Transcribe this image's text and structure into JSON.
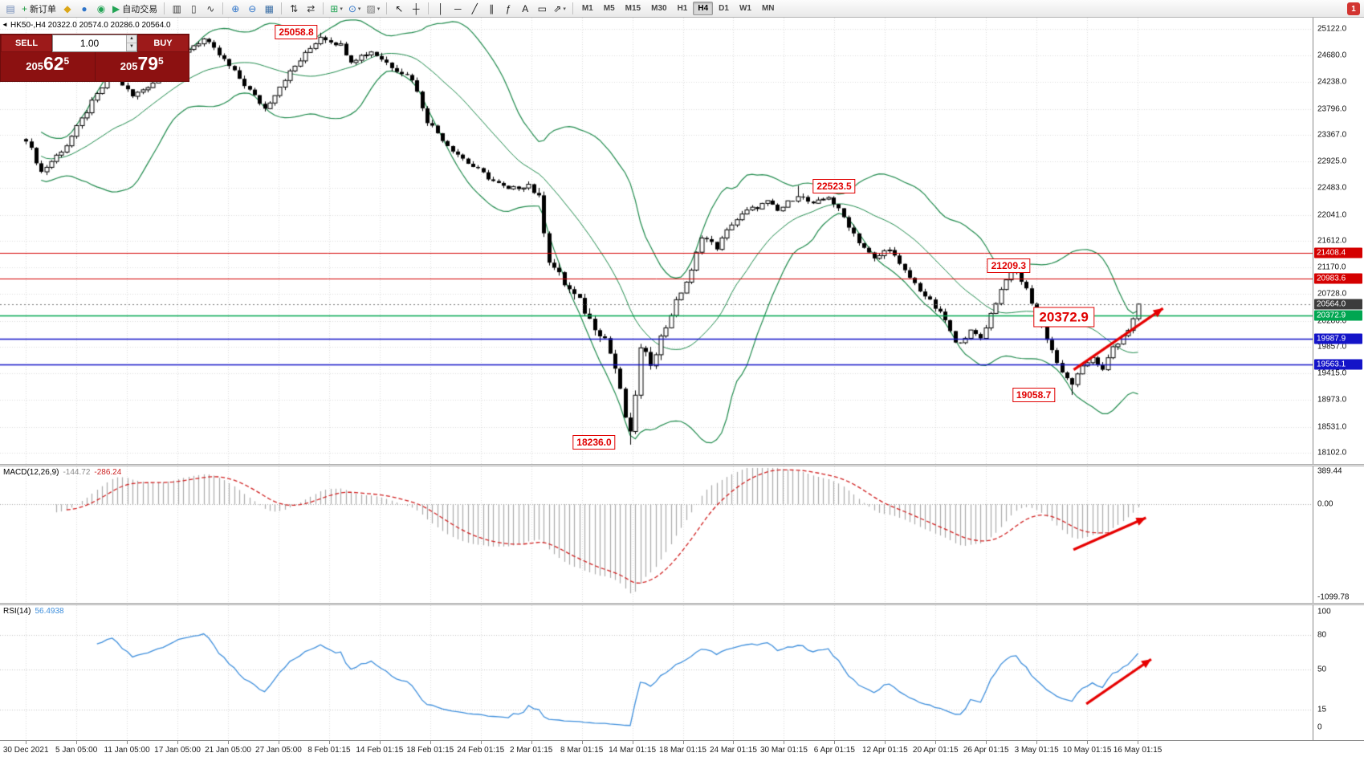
{
  "ui": {
    "symbol_info": "HK50-,H4  20322.0 20574.0 20286.0 20564.0",
    "collapse_glyph": "◄",
    "badge": "1",
    "trade_panel": {
      "sell_label": "SELL",
      "buy_label": "BUY",
      "volume": "1.00",
      "spin_up": "▲",
      "spin_down": "▼",
      "sell_price": "20562.5",
      "buy_price": "20579.5",
      "sell_small": "205",
      "sell_big": "62",
      "sell_sup": "5",
      "buy_small": "205",
      "buy_big": "79",
      "buy_sup": "5"
    },
    "toolbar": {
      "items": [
        {
          "n": "window-icon",
          "g": "▤",
          "gc": "#6b86b5"
        },
        {
          "n": "new-order-button",
          "g": "+",
          "gc": "#1d9a3f",
          "label": "新订单"
        },
        {
          "n": "mql5-icon",
          "g": "◆",
          "gc": "#dba617"
        },
        {
          "n": "market-icon",
          "g": "●",
          "gc": "#2e74c9"
        },
        {
          "n": "signals-icon",
          "g": "◉",
          "gc": "#23a455"
        },
        {
          "n": "autotrading-button",
          "g": "▶",
          "gc": "#23a455",
          "label": "自动交易"
        },
        {
          "sep": true
        },
        {
          "n": "bars-chart-icon",
          "g": "▥",
          "gc": "#3a3a3a"
        },
        {
          "n": "candles-chart-icon",
          "g": "▯",
          "gc": "#3a3a3a"
        },
        {
          "n": "line-chart-icon",
          "g": "∿",
          "gc": "#3a3a3a"
        },
        {
          "sep": true
        },
        {
          "n": "zoom-in-icon",
          "g": "⊕",
          "gc": "#2e74c9"
        },
        {
          "n": "zoom-out-icon",
          "g": "⊖",
          "gc": "#2e74c9"
        },
        {
          "n": "tile-windows-icon",
          "g": "▦",
          "gc": "#3a6ea5"
        },
        {
          "sep": true
        },
        {
          "n": "arrange-vertical-icon",
          "g": "⇅",
          "gc": "#3a3a3a"
        },
        {
          "n": "arrange-horizontal-icon",
          "g": "⇄",
          "gc": "#3a3a3a"
        },
        {
          "sep": true
        },
        {
          "n": "new-chart-icon",
          "g": "⊞",
          "gc": "#23a455",
          "dd": true
        },
        {
          "n": "profiles-icon",
          "g": "⊙",
          "gc": "#2e74c9",
          "dd": true
        },
        {
          "n": "templates-icon",
          "g": "▨",
          "gc": "#777777",
          "dd": true
        },
        {
          "sep": true
        },
        {
          "n": "cursor-icon",
          "g": "↖",
          "gc": "#1a1a1a"
        },
        {
          "n": "crosshair-icon",
          "g": "┼",
          "gc": "#1a1a1a"
        },
        {
          "sep": true
        },
        {
          "n": "vertical-line-icon",
          "g": "│",
          "gc": "#1a1a1a"
        },
        {
          "n": "horizontal-line-icon",
          "g": "─",
          "gc": "#1a1a1a"
        },
        {
          "n": "trendline-icon",
          "g": "╱",
          "gc": "#1a1a1a"
        },
        {
          "n": "equidistant-channel-icon",
          "g": "∥",
          "gc": "#1a1a1a"
        },
        {
          "n": "fibonacci-icon",
          "g": "ƒ",
          "gc": "#1a1a1a"
        },
        {
          "n": "text-icon",
          "g": "A",
          "gc": "#1a1a1a"
        },
        {
          "n": "text-label-icon",
          "g": "▭",
          "gc": "#1a1a1a"
        },
        {
          "n": "arrows-icon",
          "g": "⇗",
          "gc": "#1a1a1a",
          "dd": true
        },
        {
          "sep": true
        },
        {
          "tf": "M1"
        },
        {
          "tf": "M5"
        },
        {
          "tf": "M15"
        },
        {
          "tf": "M30"
        },
        {
          "tf": "H1"
        },
        {
          "tf": "H4"
        },
        {
          "tf": "D1"
        },
        {
          "tf": "W1"
        },
        {
          "tf": "MN"
        }
      ],
      "active_timeframe": "H4"
    }
  },
  "chart_data": {
    "type": "candlestick",
    "symbol": "HK50-",
    "timeframe": "H4",
    "ohlc_current": {
      "open": 20322.0,
      "high": 20574.0,
      "low": 20286.0,
      "close": 20564.0
    },
    "main": {
      "ylim": [
        18102,
        25122
      ],
      "y_ticks": [
        25122.0,
        24680.0,
        24238.0,
        23796.0,
        23367.0,
        22925.0,
        22483.0,
        22041.0,
        21612.0,
        21170.0,
        20728.0,
        20286.0,
        19857.0,
        19415.0,
        18973.0,
        18531.0,
        18102.0
      ],
      "num_candles": 220,
      "close_keyframes": [
        [
          0,
          23300
        ],
        [
          3,
          22750
        ],
        [
          8,
          23200
        ],
        [
          13,
          23900
        ],
        [
          17,
          24400
        ],
        [
          21,
          24000
        ],
        [
          26,
          24300
        ],
        [
          32,
          24800
        ],
        [
          35,
          24950
        ],
        [
          39,
          24600
        ],
        [
          44,
          24100
        ],
        [
          47,
          23800
        ],
        [
          51,
          24300
        ],
        [
          56,
          24800
        ],
        [
          58,
          25000
        ],
        [
          62,
          24850
        ],
        [
          64,
          24600
        ],
        [
          68,
          24750
        ],
        [
          72,
          24500
        ],
        [
          76,
          24300
        ],
        [
          79,
          23600
        ],
        [
          83,
          23200
        ],
        [
          87,
          22900
        ],
        [
          92,
          22600
        ],
        [
          95,
          22450
        ],
        [
          99,
          22550
        ],
        [
          101,
          22300
        ],
        [
          103,
          21300
        ],
        [
          106,
          20900
        ],
        [
          109,
          20600
        ],
        [
          111,
          20300
        ],
        [
          114,
          20000
        ],
        [
          116,
          19500
        ],
        [
          118,
          18700
        ],
        [
          119,
          18380
        ],
        [
          121,
          19800
        ],
        [
          123,
          19600
        ],
        [
          125,
          20000
        ],
        [
          128,
          20600
        ],
        [
          131,
          21100
        ],
        [
          133,
          21700
        ],
        [
          136,
          21500
        ],
        [
          139,
          21900
        ],
        [
          142,
          22100
        ],
        [
          146,
          22250
        ],
        [
          148,
          22100
        ],
        [
          152,
          22380
        ],
        [
          155,
          22200
        ],
        [
          158,
          22350
        ],
        [
          161,
          22000
        ],
        [
          164,
          21600
        ],
        [
          167,
          21300
        ],
        [
          170,
          21500
        ],
        [
          172,
          21200
        ],
        [
          175,
          20900
        ],
        [
          178,
          20600
        ],
        [
          181,
          20300
        ],
        [
          183,
          19900
        ],
        [
          186,
          20100
        ],
        [
          188,
          20000
        ],
        [
          190,
          20400
        ],
        [
          193,
          21000
        ],
        [
          195,
          21100
        ],
        [
          197,
          20800
        ],
        [
          200,
          20200
        ],
        [
          202,
          19800
        ],
        [
          204,
          19400
        ],
        [
          206,
          19250
        ],
        [
          208,
          19500
        ],
        [
          210,
          19700
        ],
        [
          212,
          19450
        ],
        [
          214,
          19850
        ],
        [
          216,
          20000
        ],
        [
          218,
          20322
        ],
        [
          219,
          20564
        ]
      ],
      "forced_points": {
        "jan_peak_high": {
          "index": 58,
          "price": 25058.8
        },
        "march_low": {
          "index": 119,
          "price": 18236.0
        },
        "rebound_high": {
          "index": 152,
          "price": 22523.5
        },
        "april_high": {
          "index": 195,
          "price": 21209.3
        },
        "may_low": {
          "index": 206,
          "price": 19058.7
        }
      },
      "bollinger": {
        "period": 20,
        "deviation": 2,
        "color": "#1f8a4c"
      },
      "levels": [
        {
          "price": 21408.4,
          "color": "#d40000",
          "width": 1,
          "tag_bg": "#d40000"
        },
        {
          "price": 20983.6,
          "color": "#d40000",
          "width": 1,
          "tag_bg": "#d40000"
        },
        {
          "price": 20564.0,
          "color": "#777777",
          "width": 1,
          "dash": true,
          "tag_bg": "#3c3c3c"
        },
        {
          "price": 20372.9,
          "color": "#00a651",
          "width": 1.3,
          "tag_bg": "#00a651"
        },
        {
          "price": 19987.9,
          "color": "#1414c8",
          "width": 1.3,
          "tag_bg": "#1414c8"
        },
        {
          "price": 19563.1,
          "color": "#1414c8",
          "width": 1.3,
          "tag_bg": "#1414c8"
        }
      ],
      "annotations": [
        {
          "text": "25058.8",
          "xf": 0.2257,
          "price": 25065,
          "size": "md"
        },
        {
          "text": "22523.5",
          "xf": 0.6355,
          "price": 22515,
          "size": "md"
        },
        {
          "text": "21209.3",
          "xf": 0.7684,
          "price": 21196,
          "size": "md"
        },
        {
          "text": "20372.9",
          "xf": 0.8105,
          "price": 20351,
          "size": "lg"
        },
        {
          "text": "19058.7",
          "xf": 0.7875,
          "price": 19062,
          "size": "md"
        },
        {
          "text": "18236.0",
          "xf": 0.4526,
          "price": 18274,
          "size": "md"
        }
      ],
      "arrow": {
        "x1f": 0.818,
        "p1": 19477,
        "x2f": 0.886,
        "p2": 20494,
        "color": "#e60000"
      }
    },
    "macd": {
      "label": "MACD(12,26,9)",
      "value1": "-144.72",
      "value2": "-286.24",
      "fast": 12,
      "slow": 26,
      "signal": 9,
      "ylim": [
        -1099.78,
        389.44
      ],
      "y_ticks": [
        389.44,
        0.0,
        -1099.78
      ],
      "hist_color": "#a9a9a9",
      "signal_color": "#d02020",
      "arrow": {
        "x1f": 0.8178,
        "f1": 0.61,
        "x2f": 0.873,
        "f2": 0.377,
        "color": "#e60000"
      }
    },
    "rsi": {
      "label": "RSI(14)",
      "value": "56.4938",
      "period": 14,
      "levels": [
        80,
        50,
        15
      ],
      "y_ticks": [
        100,
        80,
        50,
        15,
        0
      ],
      "color": "#3f8fdc",
      "arrow": {
        "x1f": 0.8276,
        "f1": 0.731,
        "x2f": 0.877,
        "f2": 0.4,
        "color": "#e60000"
      }
    },
    "x_labels": [
      "30 Dec 2021",
      "5 Jan 05:00",
      "11 Jan 05:00",
      "17 Jan 05:00",
      "21 Jan 05:00",
      "27 Jan 05:00",
      "8 Feb 01:15",
      "14 Feb 01:15",
      "18 Feb 01:15",
      "24 Feb 01:15",
      "2 Mar 01:15",
      "8 Mar 01:15",
      "14 Mar 01:15",
      "18 Mar 01:15",
      "24 Mar 01:15",
      "30 Mar 01:15",
      "6 Apr 01:15",
      "12 Apr 01:15",
      "20 Apr 01:15",
      "26 Apr 01:15",
      "3 May 01:15",
      "10 May 01:15",
      "16 May 01:15"
    ],
    "x_label_start_frac": 0.0197,
    "x_label_step_frac": 0.0385,
    "candles_end_frac": 0.867,
    "grid": true
  }
}
